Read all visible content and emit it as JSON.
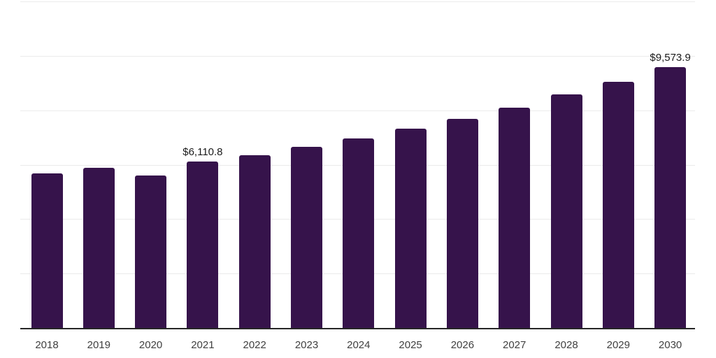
{
  "chart_data": {
    "type": "bar",
    "categories": [
      "2018",
      "2019",
      "2020",
      "2021",
      "2022",
      "2023",
      "2024",
      "2025",
      "2026",
      "2027",
      "2028",
      "2029",
      "2030"
    ],
    "values": [
      5670,
      5875,
      5610,
      6110.8,
      6350,
      6655,
      6960,
      7335,
      7690,
      8100,
      8575,
      9035,
      9573.9
    ],
    "data_labels": [
      "",
      "",
      "",
      "$6,110.8",
      "",
      "",
      "",
      "",
      "",
      "",
      "",
      "",
      "$9,573.9"
    ],
    "ylim": [
      0,
      12000
    ],
    "gridline_values": [
      2000,
      4000,
      6000,
      8000,
      10000,
      12000
    ],
    "grid": "horizontal-only",
    "legend_position": "none",
    "colors": {
      "bar": "#36134b",
      "gridline": "#ebebeb",
      "axis_line": "#262626",
      "tick_label": "#404040",
      "data_label": "#1a1a1a",
      "background": "#ffffff"
    }
  }
}
